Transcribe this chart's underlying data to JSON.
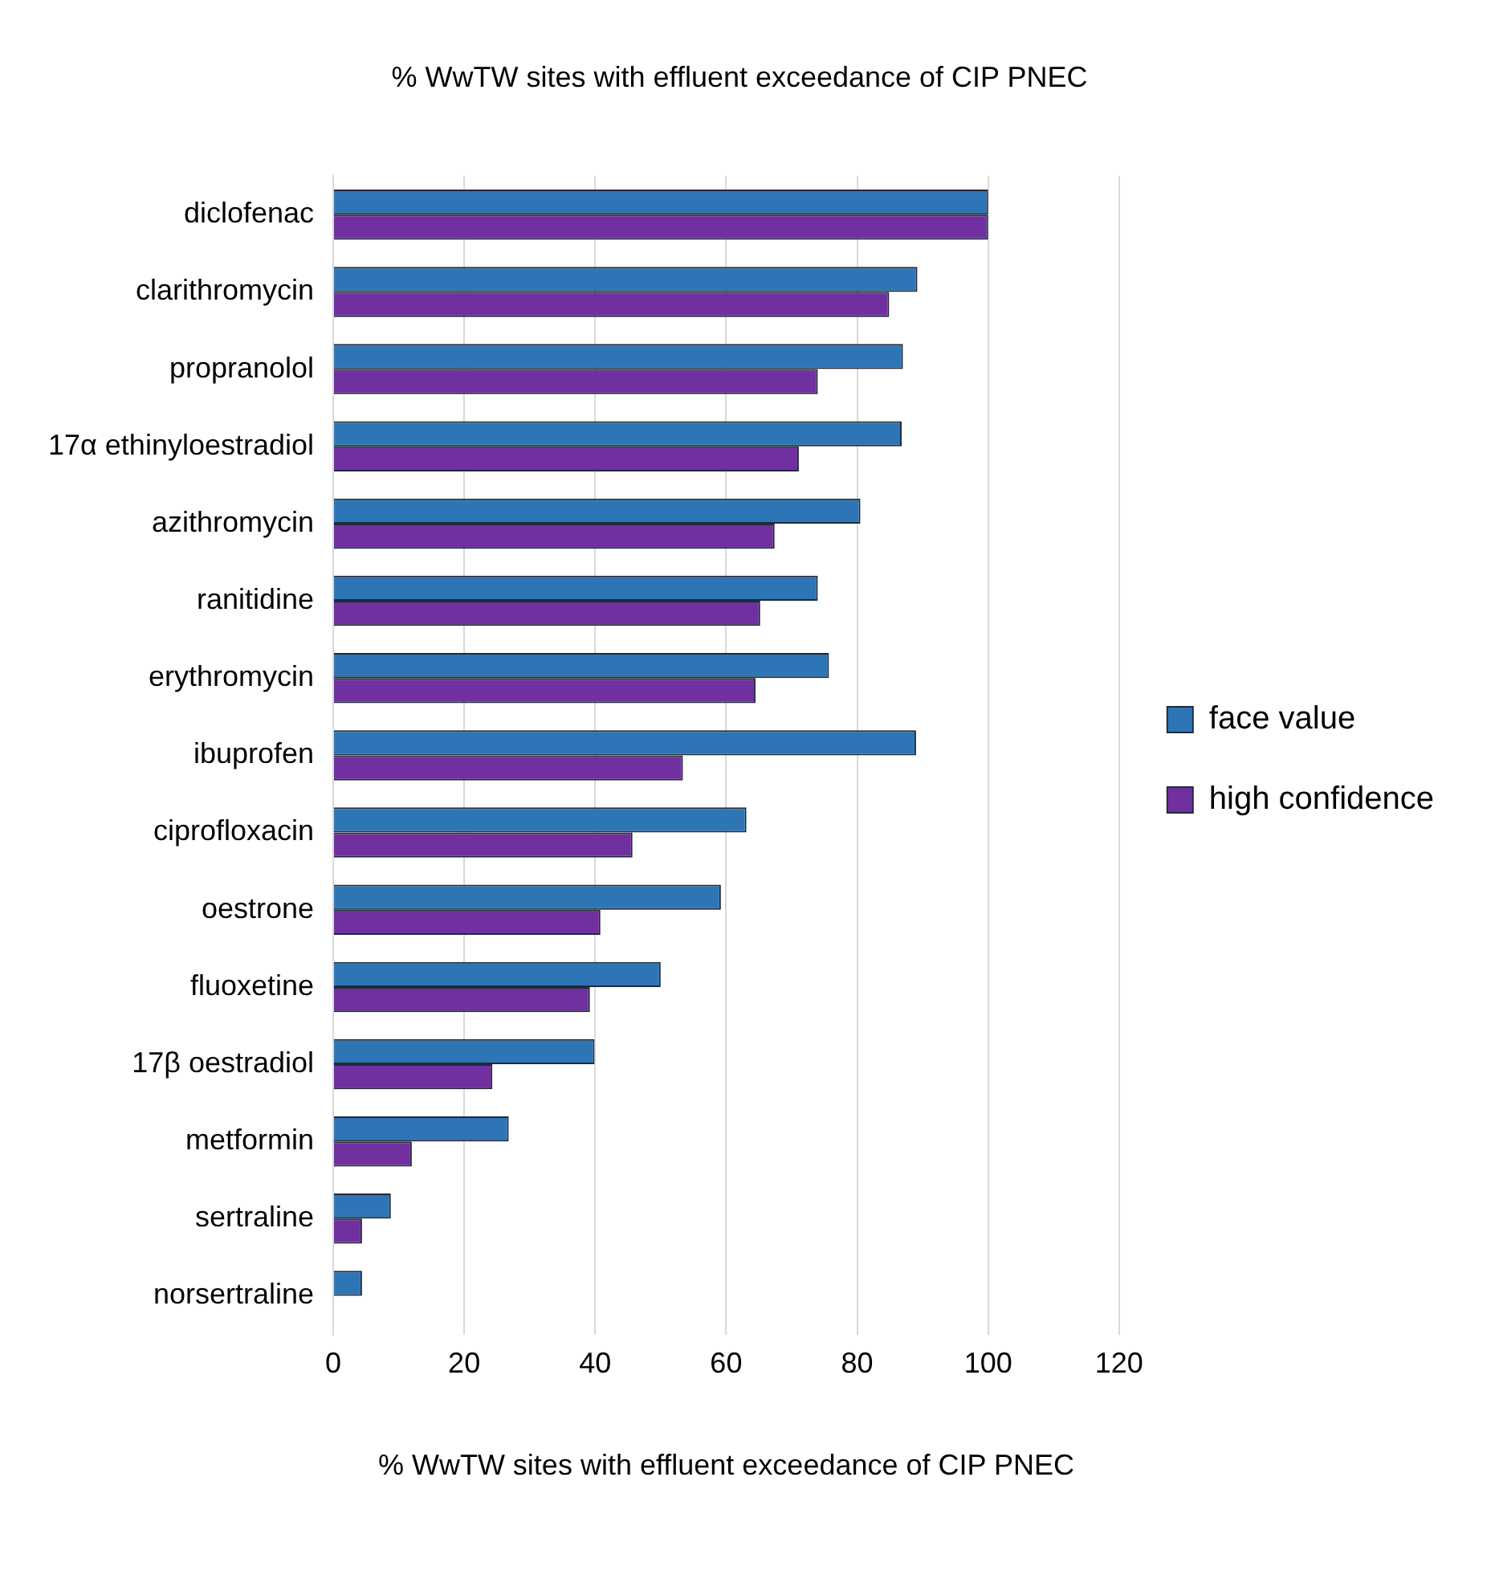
{
  "chart_data": {
    "type": "bar",
    "orientation": "horizontal",
    "title": "% WwTW sites with effluent exceedance of CIP PNEC",
    "xlabel": "% WwTW sites with effluent exceedance of CIP PNEC",
    "categories": [
      "diclofenac",
      "clarithromycin",
      "propranolol",
      "17α ethinyloestradiol",
      "azithromycin",
      "ranitidine",
      "erythromycin",
      "ibuprofen",
      "ciprofloxacin",
      "oestrone",
      "fluoxetine",
      "17β oestradiol",
      "metformin",
      "sertraline",
      "norsertraline"
    ],
    "series": [
      {
        "name": "face value",
        "color": "#2e75b6",
        "values": [
          100,
          89.2,
          87,
          86.8,
          80.5,
          74,
          75.7,
          89,
          63.1,
          59.2,
          50,
          39.9,
          26.8,
          8.8,
          4.4
        ]
      },
      {
        "name": "high confidence",
        "color": "#7030a0",
        "values": [
          100,
          84.9,
          74,
          71.1,
          67.4,
          65.2,
          64.5,
          53.4,
          45.7,
          40.8,
          39.2,
          24.3,
          12,
          4.4,
          0
        ]
      }
    ],
    "xlim": [
      0,
      120
    ],
    "xticks": [
      0,
      20,
      40,
      60,
      80,
      100,
      120
    ],
    "grid": "x",
    "legend": "right"
  }
}
